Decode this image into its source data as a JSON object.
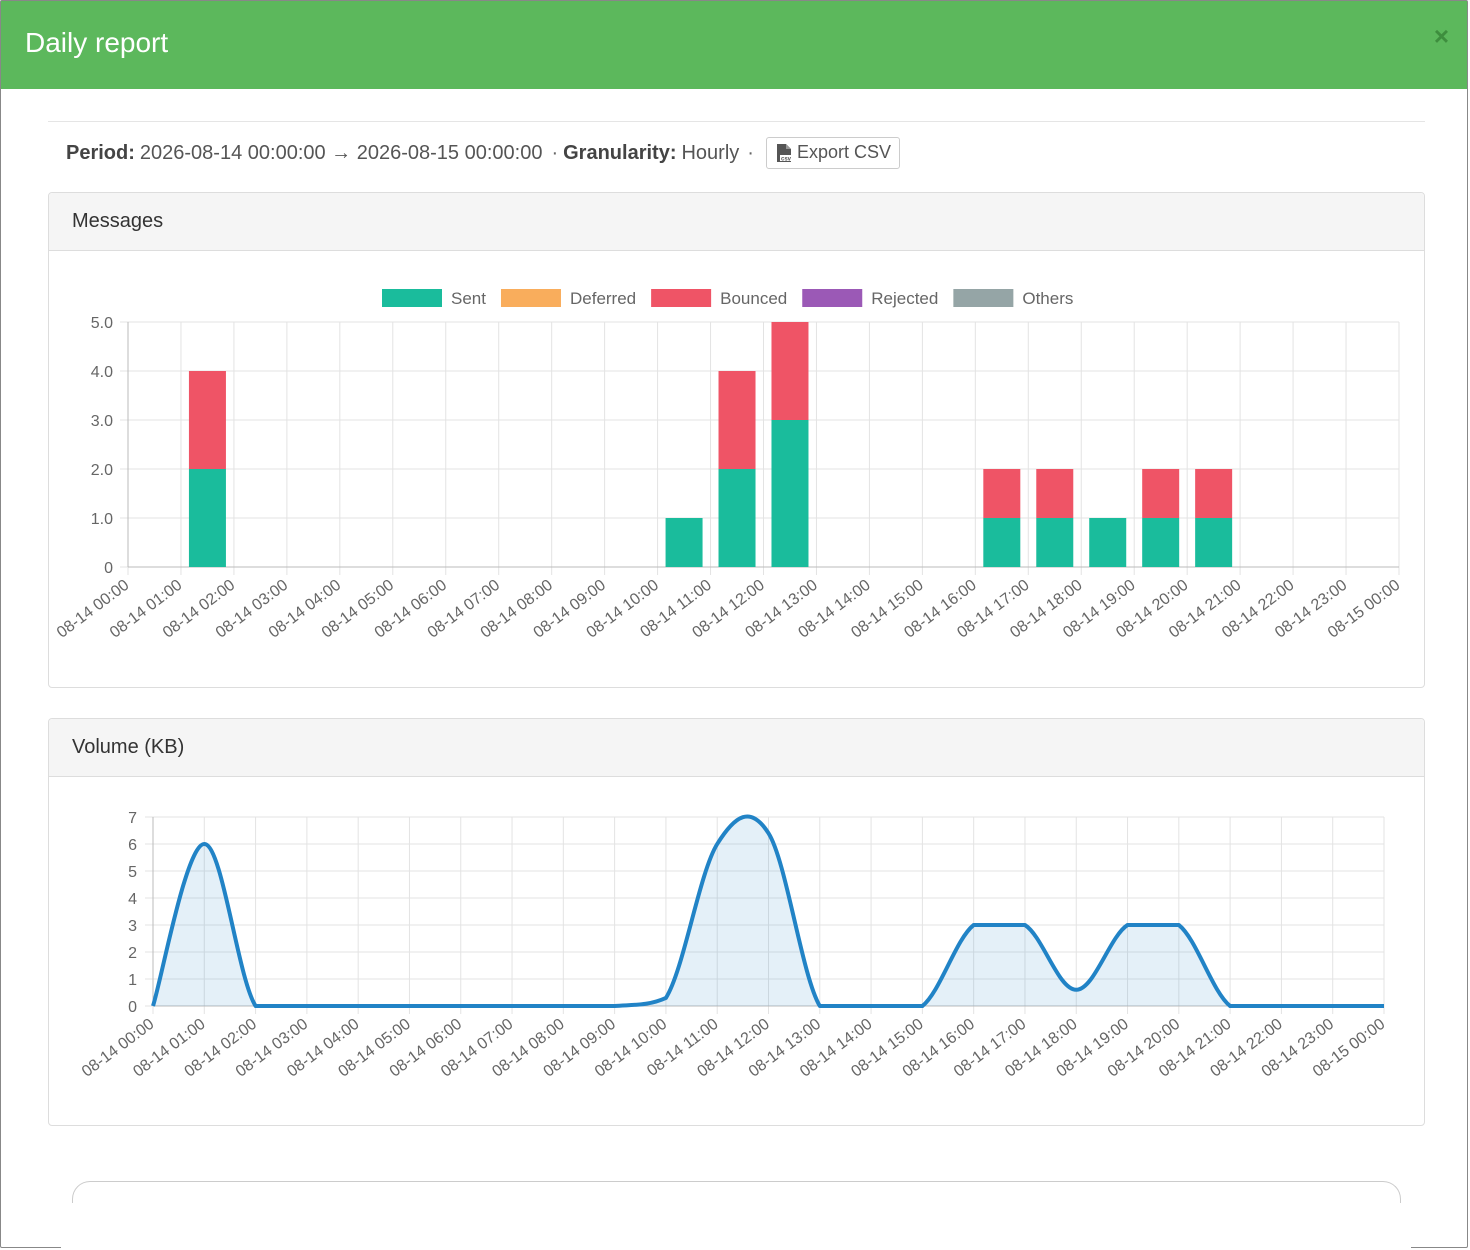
{
  "modal": {
    "title": "Daily report",
    "close_label": "×",
    "header_color": "#5cb85c"
  },
  "info": {
    "period_label": "Period:",
    "period_value": "2026-08-14 00:00:00 → 2026-08-15 00:00:00",
    "granularity_label": "Granularity:",
    "granularity_value": "Hourly",
    "separator": "·",
    "export_label": "Export CSV",
    "export_icon": "file-csv-icon"
  },
  "panels": {
    "messages_title": "Messages",
    "volume_title": "Volume (KB)"
  },
  "chart_data": [
    {
      "type": "bar",
      "stacked": true,
      "title": "Messages",
      "categories": [
        "08-14 00:00",
        "08-14 01:00",
        "08-14 02:00",
        "08-14 03:00",
        "08-14 04:00",
        "08-14 05:00",
        "08-14 06:00",
        "08-14 07:00",
        "08-14 08:00",
        "08-14 09:00",
        "08-14 10:00",
        "08-14 11:00",
        "08-14 12:00",
        "08-14 13:00",
        "08-14 14:00",
        "08-14 15:00",
        "08-14 16:00",
        "08-14 17:00",
        "08-14 18:00",
        "08-14 19:00",
        "08-14 20:00",
        "08-14 21:00",
        "08-14 22:00",
        "08-14 23:00",
        "08-15 00:00"
      ],
      "series": [
        {
          "name": "Sent",
          "color": "#1abc9c",
          "values": [
            0,
            2,
            0,
            0,
            0,
            0,
            0,
            0,
            0,
            0,
            1,
            2,
            3,
            0,
            0,
            0,
            1,
            1,
            1,
            1,
            1,
            0,
            0,
            0,
            0
          ]
        },
        {
          "name": "Deferred",
          "color": "#f9ad5c",
          "values": [
            0,
            0,
            0,
            0,
            0,
            0,
            0,
            0,
            0,
            0,
            0,
            0,
            0,
            0,
            0,
            0,
            0,
            0,
            0,
            0,
            0,
            0,
            0,
            0,
            0
          ]
        },
        {
          "name": "Bounced",
          "color": "#ef5466",
          "values": [
            0,
            2,
            0,
            0,
            0,
            0,
            0,
            0,
            0,
            0,
            0,
            2,
            2,
            0,
            0,
            0,
            1,
            1,
            0,
            1,
            1,
            0,
            0,
            0,
            0
          ]
        },
        {
          "name": "Rejected",
          "color": "#9b59b6",
          "values": [
            0,
            0,
            0,
            0,
            0,
            0,
            0,
            0,
            0,
            0,
            0,
            0,
            0,
            0,
            0,
            0,
            0,
            0,
            0,
            0,
            0,
            0,
            0,
            0,
            0
          ]
        },
        {
          "name": "Others",
          "color": "#95a5a6",
          "values": [
            0,
            0,
            0,
            0,
            0,
            0,
            0,
            0,
            0,
            0,
            0,
            0,
            0,
            0,
            0,
            0,
            0,
            0,
            0,
            0,
            0,
            0,
            0,
            0,
            0
          ]
        }
      ],
      "ylim": [
        0,
        5
      ],
      "yticks": [
        "0",
        "1.0",
        "2.0",
        "3.0",
        "4.0",
        "5.0"
      ],
      "grid": true,
      "legend": "top"
    },
    {
      "type": "area",
      "title": "Volume (KB)",
      "categories": [
        "08-14 00:00",
        "08-14 01:00",
        "08-14 02:00",
        "08-14 03:00",
        "08-14 04:00",
        "08-14 05:00",
        "08-14 06:00",
        "08-14 07:00",
        "08-14 08:00",
        "08-14 09:00",
        "08-14 10:00",
        "08-14 11:00",
        "08-14 12:00",
        "08-14 13:00",
        "08-14 14:00",
        "08-14 15:00",
        "08-14 16:00",
        "08-14 17:00",
        "08-14 18:00",
        "08-14 19:00",
        "08-14 20:00",
        "08-14 21:00",
        "08-14 22:00",
        "08-14 23:00",
        "08-15 00:00"
      ],
      "series": [
        {
          "name": "",
          "color": "#2183c6",
          "values": [
            0,
            6,
            0,
            0,
            0,
            0,
            0,
            0,
            0,
            0,
            0.3,
            6,
            6.4,
            0,
            0,
            0,
            3,
            3,
            0.6,
            3,
            3,
            0,
            0,
            0,
            0
          ]
        }
      ],
      "ylim": [
        0,
        7
      ],
      "yticks": [
        "0",
        "1",
        "2",
        "3",
        "4",
        "5",
        "6",
        "7"
      ],
      "grid": true
    }
  ]
}
